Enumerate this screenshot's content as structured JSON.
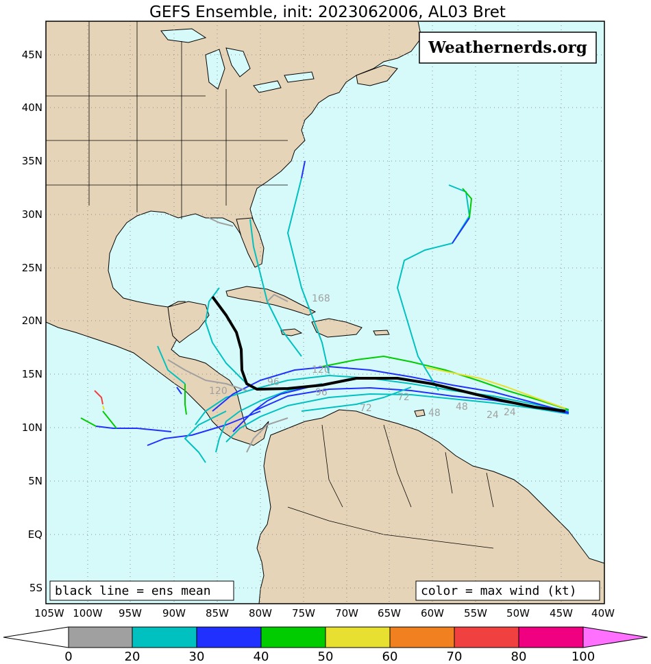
{
  "title": "GEFS Ensemble, init: 2023062006, AL03 Bret",
  "watermark": "Weathernerds.org",
  "legend_left": "black line = ens mean",
  "legend_right": "color = max wind (kt)",
  "lon_labels": [
    "105W",
    "100W",
    "95W",
    "90W",
    "85W",
    "80W",
    "75W",
    "70W",
    "65W",
    "60W",
    "55W",
    "50W",
    "45W",
    "40W"
  ],
  "lat_labels": [
    "45N",
    "40N",
    "35N",
    "30N",
    "25N",
    "20N",
    "15N",
    "10N",
    "5N",
    "EQ",
    "5S"
  ],
  "colorbar": {
    "ticks": [
      "0",
      "20",
      "30",
      "40",
      "50",
      "60",
      "70",
      "80",
      "100"
    ],
    "colors": [
      "#a0a0a0",
      "#00c0c0",
      "#2030ff",
      "#00cc00",
      "#e8e030",
      "#f08020",
      "#f04040",
      "#f00080"
    ],
    "low_arrow_color": "#ffffff",
    "high_arrow_color": "#ff70ff"
  },
  "colors": {
    "ocean": "#d6fafa",
    "land": "#e6d4b8",
    "mean_track": "#000000",
    "hour_label": "#a0a0a0"
  },
  "hour_labels": [
    "72",
    "48",
    "48",
    "24",
    "24",
    "96",
    "72",
    "120",
    "168",
    "96",
    "120"
  ]
}
